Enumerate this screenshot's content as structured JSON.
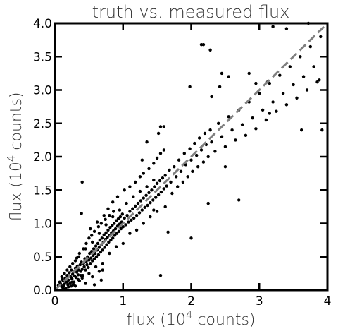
{
  "chart_data": {
    "type": "scatter",
    "title": "truth vs. measured flux",
    "xlabel": {
      "pre": "flux (10",
      "sup": "4",
      "post": " counts)"
    },
    "ylabel": {
      "pre": "flux (10",
      "sup": "4",
      "post": " counts)"
    },
    "xlim": [
      0,
      4
    ],
    "ylim": [
      0,
      4
    ],
    "xticks": [
      0,
      1,
      2,
      3,
      4
    ],
    "xtick_labels": [
      "0",
      "1",
      "2",
      "3",
      "4"
    ],
    "yticks": [
      0,
      0.5,
      1,
      1.5,
      2,
      2.5,
      3,
      3.5,
      4
    ],
    "ytick_labels": [
      "0.0",
      "0.5",
      "1.0",
      "1.5",
      "2.0",
      "2.5",
      "3.0",
      "3.5",
      "4.0"
    ],
    "reference_line": {
      "x": [
        0,
        4
      ],
      "y": [
        0,
        4
      ],
      "style": "dashed",
      "color": "#808080"
    },
    "point_color": "#000000",
    "grid": false,
    "series": [
      {
        "points": [
          [
            0.08,
            0.1
          ],
          [
            0.1,
            0.05
          ],
          [
            0.12,
            0.14
          ],
          [
            0.14,
            0.09
          ],
          [
            0.15,
            0.18
          ],
          [
            0.17,
            0.12
          ],
          [
            0.18,
            0.22
          ],
          [
            0.2,
            0.15
          ],
          [
            0.21,
            0.26
          ],
          [
            0.22,
            0.1
          ],
          [
            0.23,
            0.2
          ],
          [
            0.24,
            0.3
          ],
          [
            0.25,
            0.17
          ],
          [
            0.26,
            0.24
          ],
          [
            0.27,
            0.08
          ],
          [
            0.28,
            0.28
          ],
          [
            0.29,
            0.21
          ],
          [
            0.3,
            0.33
          ],
          [
            0.31,
            0.19
          ],
          [
            0.32,
            0.27
          ],
          [
            0.33,
            0.36
          ],
          [
            0.34,
            0.23
          ],
          [
            0.35,
            0.3
          ],
          [
            0.36,
            0.14
          ],
          [
            0.37,
            0.38
          ],
          [
            0.38,
            0.28
          ],
          [
            0.39,
            0.42
          ],
          [
            0.4,
            0.31
          ],
          [
            0.41,
            0.22
          ],
          [
            0.42,
            0.4
          ],
          [
            0.43,
            0.35
          ],
          [
            0.44,
            0.47
          ],
          [
            0.45,
            0.3
          ],
          [
            0.46,
            0.43
          ],
          [
            0.47,
            0.38
          ],
          [
            0.48,
            0.5
          ],
          [
            0.49,
            0.34
          ],
          [
            0.5,
            0.45
          ],
          [
            0.51,
            0.55
          ],
          [
            0.52,
            0.4
          ],
          [
            0.53,
            0.48
          ],
          [
            0.54,
            0.58
          ],
          [
            0.55,
            0.44
          ],
          [
            0.56,
            0.52
          ],
          [
            0.57,
            0.62
          ],
          [
            0.58,
            0.47
          ],
          [
            0.59,
            0.55
          ],
          [
            0.6,
            0.66
          ],
          [
            0.61,
            0.5
          ],
          [
            0.62,
            0.6
          ],
          [
            0.63,
            0.7
          ],
          [
            0.64,
            0.53
          ],
          [
            0.65,
            0.64
          ],
          [
            0.66,
            0.75
          ],
          [
            0.67,
            0.57
          ],
          [
            0.68,
            0.68
          ],
          [
            0.69,
            0.78
          ],
          [
            0.7,
            0.6
          ],
          [
            0.71,
            0.72
          ],
          [
            0.72,
            0.83
          ],
          [
            0.73,
            0.64
          ],
          [
            0.74,
            0.76
          ],
          [
            0.75,
            0.86
          ],
          [
            0.76,
            0.68
          ],
          [
            0.77,
            0.79
          ],
          [
            0.78,
            0.9
          ],
          [
            0.79,
            0.72
          ],
          [
            0.8,
            0.82
          ],
          [
            0.81,
            0.94
          ],
          [
            0.82,
            0.75
          ],
          [
            0.83,
            0.86
          ],
          [
            0.84,
            0.97
          ],
          [
            0.85,
            0.78
          ],
          [
            0.86,
            0.89
          ],
          [
            0.87,
            1.0
          ],
          [
            0.88,
            0.82
          ],
          [
            0.89,
            0.92
          ],
          [
            0.9,
            1.04
          ],
          [
            0.91,
            0.85
          ],
          [
            0.92,
            0.96
          ],
          [
            0.93,
            1.07
          ],
          [
            0.94,
            0.88
          ],
          [
            0.95,
            0.99
          ],
          [
            0.96,
            1.1
          ],
          [
            0.97,
            0.92
          ],
          [
            0.98,
            1.02
          ],
          [
            0.99,
            1.14
          ],
          [
            1.0,
            0.95
          ],
          [
            1.02,
            1.08
          ],
          [
            1.04,
            0.98
          ],
          [
            1.06,
            1.12
          ],
          [
            1.08,
            1.02
          ],
          [
            1.1,
            1.18
          ],
          [
            1.12,
            1.05
          ],
          [
            1.14,
            1.22
          ],
          [
            1.16,
            1.08
          ],
          [
            1.18,
            1.26
          ],
          [
            1.2,
            1.12
          ],
          [
            1.22,
            1.3
          ],
          [
            1.24,
            1.16
          ],
          [
            1.26,
            1.34
          ],
          [
            1.28,
            1.2
          ],
          [
            1.3,
            1.38
          ],
          [
            1.32,
            1.24
          ],
          [
            1.34,
            1.42
          ],
          [
            1.36,
            1.27
          ],
          [
            1.38,
            1.46
          ],
          [
            1.4,
            1.31
          ],
          [
            1.42,
            1.5
          ],
          [
            1.44,
            1.35
          ],
          [
            1.46,
            1.55
          ],
          [
            1.48,
            1.39
          ],
          [
            1.5,
            1.6
          ],
          [
            1.52,
            1.43
          ],
          [
            1.54,
            1.64
          ],
          [
            1.56,
            1.47
          ],
          [
            1.58,
            1.68
          ],
          [
            1.6,
            1.52
          ],
          [
            1.62,
            1.72
          ],
          [
            1.64,
            1.56
          ],
          [
            0.25,
            0.12
          ],
          [
            0.3,
            0.44
          ],
          [
            0.35,
            0.5
          ],
          [
            0.4,
            0.18
          ],
          [
            0.45,
            0.62
          ],
          [
            0.5,
            0.25
          ],
          [
            0.55,
            0.72
          ],
          [
            0.6,
            0.35
          ],
          [
            0.65,
            0.85
          ],
          [
            0.7,
            0.4
          ],
          [
            0.75,
            0.98
          ],
          [
            0.8,
            0.55
          ],
          [
            0.85,
            1.1
          ],
          [
            0.9,
            0.65
          ],
          [
            0.95,
            1.2
          ],
          [
            1.0,
            0.7
          ],
          [
            1.05,
            1.3
          ],
          [
            1.1,
            0.85
          ],
          [
            1.15,
            1.4
          ],
          [
            1.2,
            0.9
          ],
          [
            1.25,
            1.48
          ],
          [
            1.3,
            1.0
          ],
          [
            1.35,
            1.55
          ],
          [
            1.4,
            1.1
          ],
          [
            1.45,
            1.65
          ],
          [
            1.5,
            1.18
          ],
          [
            0.4,
            1.62
          ],
          [
            0.39,
            1.15
          ],
          [
            0.52,
            0.92
          ],
          [
            0.62,
            1.02
          ],
          [
            0.72,
            1.12
          ],
          [
            0.78,
            1.22
          ],
          [
            0.85,
            1.32
          ],
          [
            0.92,
            1.4
          ],
          [
            1.02,
            1.5
          ],
          [
            1.1,
            1.55
          ],
          [
            1.18,
            1.62
          ],
          [
            1.25,
            1.7
          ],
          [
            1.3,
            1.75
          ],
          [
            1.38,
            1.82
          ],
          [
            1.45,
            1.9
          ],
          [
            1.5,
            1.98
          ],
          [
            1.55,
            2.05
          ],
          [
            1.6,
            2.1
          ],
          [
            1.62,
            1.25
          ],
          [
            1.66,
            0.87
          ],
          [
            1.68,
            1.8
          ],
          [
            1.7,
            1.62
          ],
          [
            1.72,
            1.45
          ],
          [
            1.75,
            1.85
          ],
          [
            1.78,
            1.7
          ],
          [
            1.8,
            1.55
          ],
          [
            1.82,
            1.95
          ],
          [
            1.85,
            1.78
          ],
          [
            1.88,
            1.62
          ],
          [
            1.9,
            2.05
          ],
          [
            1.92,
            1.88
          ],
          [
            1.95,
            1.7
          ],
          [
            1.98,
            2.12
          ],
          [
            2.0,
            1.95
          ],
          [
            2.02,
            1.78
          ],
          [
            2.05,
            2.2
          ],
          [
            2.08,
            2.02
          ],
          [
            2.1,
            1.85
          ],
          [
            2.12,
            2.28
          ],
          [
            2.15,
            2.1
          ],
          [
            2.18,
            1.92
          ],
          [
            2.2,
            2.35
          ],
          [
            2.22,
            2.18
          ],
          [
            2.25,
            2.0
          ],
          [
            2.28,
            2.4
          ],
          [
            2.3,
            2.22
          ],
          [
            2.35,
            2.08
          ],
          [
            2.4,
            2.5
          ],
          [
            2.45,
            2.3
          ],
          [
            2.5,
            2.15
          ],
          [
            2.55,
            2.6
          ],
          [
            2.6,
            2.4
          ],
          [
            2.65,
            2.25
          ],
          [
            2.7,
            2.7
          ],
          [
            2.75,
            2.48
          ],
          [
            2.8,
            2.32
          ],
          [
            2.85,
            2.82
          ],
          [
            2.9,
            2.58
          ],
          [
            2.95,
            2.42
          ],
          [
            3.0,
            2.95
          ],
          [
            3.05,
            2.7
          ],
          [
            3.1,
            2.55
          ],
          [
            3.15,
            3.1
          ],
          [
            3.2,
            2.82
          ],
          [
            3.25,
            2.68
          ],
          [
            3.3,
            3.22
          ],
          [
            3.35,
            2.95
          ],
          [
            3.4,
            2.78
          ],
          [
            3.45,
            3.35
          ],
          [
            3.5,
            3.08
          ],
          [
            3.55,
            2.88
          ],
          [
            3.6,
            3.5
          ],
          [
            3.65,
            3.2
          ],
          [
            3.7,
            3.0
          ],
          [
            3.75,
            3.65
          ],
          [
            3.8,
            3.35
          ],
          [
            3.85,
            3.12
          ],
          [
            3.9,
            3.8
          ],
          [
            3.92,
            2.4
          ],
          [
            3.88,
            3.15
          ],
          [
            3.72,
            4.0
          ],
          [
            3.62,
            2.4
          ],
          [
            3.4,
            3.92
          ],
          [
            3.2,
            3.95
          ],
          [
            3.12,
            3.12
          ],
          [
            2.95,
            3.1
          ],
          [
            2.85,
            3.25
          ],
          [
            2.55,
            3.2
          ],
          [
            2.45,
            3.25
          ],
          [
            2.42,
            3.05
          ],
          [
            2.3,
            2.9
          ],
          [
            2.28,
            3.6
          ],
          [
            2.18,
            3.68
          ],
          [
            2.15,
            3.68
          ],
          [
            1.98,
            3.05
          ],
          [
            1.6,
            2.45
          ],
          [
            1.55,
            2.45
          ],
          [
            1.52,
            2.35
          ],
          [
            2.25,
            1.3
          ],
          [
            1.55,
            0.22
          ],
          [
            2.0,
            0.78
          ],
          [
            1.45,
            1.2
          ],
          [
            1.35,
            2.22
          ],
          [
            1.28,
            1.95
          ],
          [
            2.7,
            1.35
          ],
          [
            3.15,
            2.65
          ],
          [
            2.5,
            1.85
          ],
          [
            0.3,
            0.06
          ],
          [
            0.45,
            0.1
          ],
          [
            0.55,
            0.2
          ],
          [
            0.65,
            0.28
          ],
          [
            0.58,
            0.08
          ],
          [
            0.7,
            0.3
          ],
          [
            0.68,
            0.15
          ],
          [
            0.2,
            0.05
          ],
          [
            0.16,
            0.03
          ],
          [
            0.12,
            0.02
          ],
          [
            0.22,
            0.35
          ],
          [
            0.18,
            0.3
          ],
          [
            0.14,
            0.25
          ],
          [
            0.1,
            0.2
          ],
          [
            0.26,
            0.4
          ],
          [
            0.32,
            0.48
          ],
          [
            0.36,
            0.55
          ],
          [
            0.42,
            0.62
          ],
          [
            0.46,
            0.7
          ],
          [
            0.5,
            0.78
          ],
          [
            0.54,
            0.82
          ],
          [
            0.58,
            0.88
          ],
          [
            0.64,
            0.95
          ],
          [
            0.68,
            1.0
          ],
          [
            0.74,
            1.06
          ],
          [
            0.8,
            1.12
          ],
          [
            0.86,
            1.18
          ],
          [
            0.05,
            0.07
          ],
          [
            0.07,
            0.12
          ],
          [
            0.09,
            0.08
          ],
          [
            0.11,
            0.16
          ],
          [
            0.13,
            0.06
          ],
          [
            0.19,
            0.08
          ],
          [
            0.24,
            0.06
          ],
          [
            0.28,
            0.12
          ],
          [
            0.34,
            0.16
          ],
          [
            0.38,
            0.22
          ]
        ]
      }
    ]
  }
}
